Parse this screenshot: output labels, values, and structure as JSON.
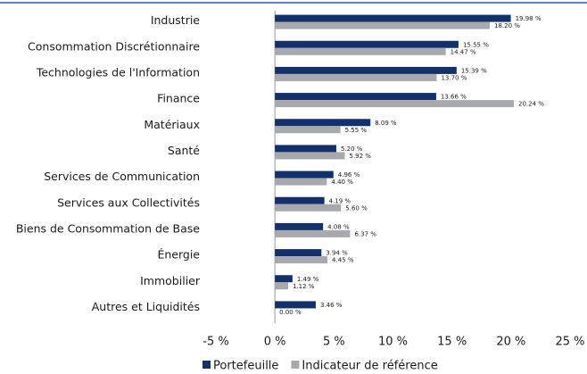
{
  "chart_data": {
    "type": "bar",
    "orientation": "horizontal",
    "categories": [
      "Industrie",
      "Consommation Discrétionnaire",
      "Technologies de l'Information",
      "Finance",
      "Matériaux",
      "Santé",
      "Services de Communication",
      "Services aux Collectivités",
      "Biens de Consommation de Base",
      "Énergie",
      "Immobilier",
      "Autres et Liquidités"
    ],
    "series": [
      {
        "name": "Portefeuille",
        "color": "#14306b",
        "values": [
          19.98,
          15.55,
          15.39,
          13.66,
          8.09,
          5.2,
          4.96,
          4.19,
          4.08,
          3.94,
          1.49,
          3.46
        ],
        "value_labels": [
          "19.98 %",
          "15.55 %",
          "15.39 %",
          "13.66 %",
          "8.09 %",
          "5.20 %",
          "4.96 %",
          "4.19 %",
          "4.08 %",
          "3.94 %",
          "1.49 %",
          "3.46 %"
        ]
      },
      {
        "name": "Indicateur de référence",
        "color": "#a7a9ac",
        "values": [
          18.2,
          14.47,
          13.7,
          20.24,
          5.55,
          5.92,
          4.4,
          5.6,
          6.37,
          4.45,
          1.12,
          0.0
        ],
        "value_labels": [
          "18.20 %",
          "14.47 %",
          "13.70 %",
          "20.24 %",
          "5.55 %",
          "5.92 %",
          "4.40 %",
          "5.60 %",
          "6.37 %",
          "4.45 %",
          "1.12 %",
          "0.00 %"
        ]
      }
    ],
    "xlim": [
      -5,
      25
    ],
    "xticks": [
      {
        "value": -5,
        "label": "-5 %"
      },
      {
        "value": 0,
        "label": "0 %"
      },
      {
        "value": 5,
        "label": "5 %"
      },
      {
        "value": 10,
        "label": "10 %"
      },
      {
        "value": 15,
        "label": "15 %"
      },
      {
        "value": 20,
        "label": "20 %"
      },
      {
        "value": 25,
        "label": "25 %"
      }
    ],
    "grid": false,
    "legend": "bottom"
  }
}
